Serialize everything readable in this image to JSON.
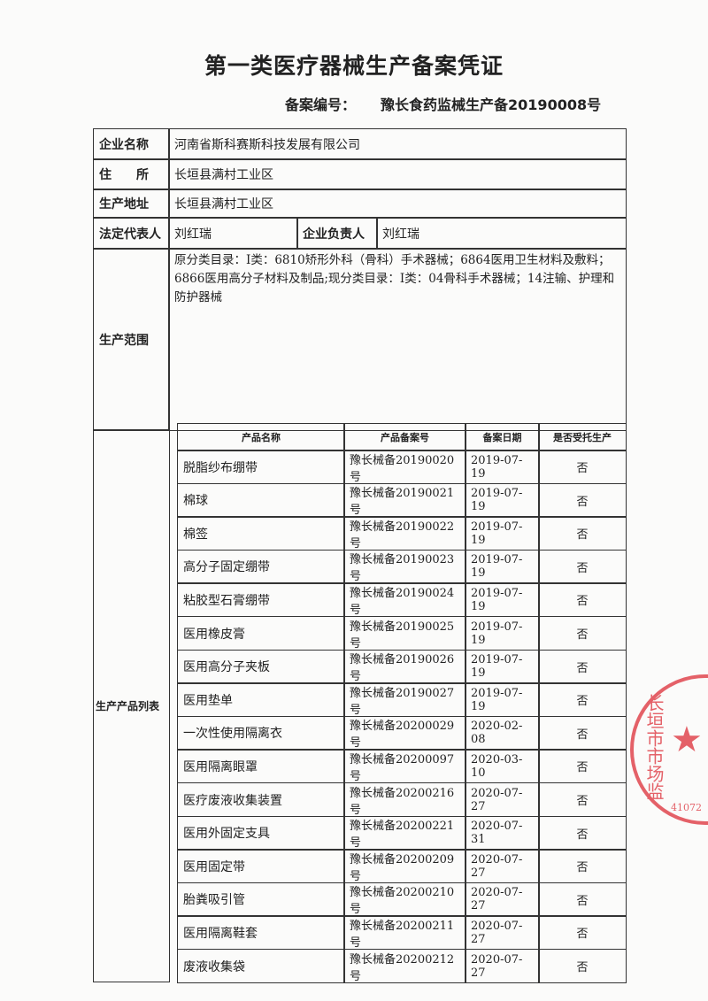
{
  "title": "第一类医疗器械生产备案凭证",
  "record": {
    "label": "备案编号：",
    "value": "豫长食药监械生产备",
    "number": "20190008号"
  },
  "fields": {
    "company_label": "企业名称",
    "company": "河南省斯科赛斯科技发展有限公司",
    "residence_label": "住　　所",
    "residence": "长垣县满村工业区",
    "site_label": "生产地址",
    "site": "长垣县满村工业区",
    "legal_label": "法定代表人",
    "legal": "刘红瑞",
    "head_label": "企业负责人",
    "head": "刘红瑞",
    "scope_label": "生产范围",
    "scope": "原分类目录：Ⅰ类：6810矫形外科（骨科）手术器械；6864医用卫生材料及敷料；6866医用高分子材料及制品;现分类目录：Ⅰ类：04骨科手术器械；14注输、护理和防护器械",
    "products_label": "生产产品列表"
  },
  "products": {
    "headers": [
      "产品名称",
      "产品备案号",
      "备案日期",
      "是否受托生产"
    ],
    "rows": [
      [
        "脱脂纱布绷带",
        "豫长械备20190020号",
        "2019-07-19",
        "否"
      ],
      [
        "棉球",
        "豫长械备20190021号",
        "2019-07-19",
        "否"
      ],
      [
        "棉签",
        "豫长械备20190022号",
        "2019-07-19",
        "否"
      ],
      [
        "高分子固定绷带",
        "豫长械备20190023号",
        "2019-07-19",
        "否"
      ],
      [
        "粘胶型石膏绷带",
        "豫长械备20190024号",
        "2019-07-19",
        "否"
      ],
      [
        "医用橡皮膏",
        "豫长械备20190025号",
        "2019-07-19",
        "否"
      ],
      [
        "医用高分子夹板",
        "豫长械备20190026号",
        "2019-07-19",
        "否"
      ],
      [
        "医用垫单",
        "豫长械备20190027号",
        "2019-07-19",
        "否"
      ],
      [
        "一次性使用隔离衣",
        "豫长械备20200029号",
        "2020-02-08",
        "否"
      ],
      [
        "医用隔离眼罩",
        "豫长械备20200097号",
        "2020-03-10",
        "否"
      ],
      [
        "医疗废液收集装置",
        "豫长械备20200216号",
        "2020-07-27",
        "否"
      ],
      [
        "医用外固定支具",
        "豫长械备20200221号",
        "2020-07-31",
        "否"
      ],
      [
        "医用固定带",
        "豫长械备20200209号",
        "2020-07-27",
        "否"
      ],
      [
        "胎粪吸引管",
        "豫长械备20200210号",
        "2020-07-27",
        "否"
      ],
      [
        "医用隔离鞋套",
        "豫长械备20200211号",
        "2020-07-27",
        "否"
      ],
      [
        "废液收集袋",
        "豫长械备20200212号",
        "2020-07-27",
        "否"
      ]
    ]
  },
  "stamp": {
    "text": "长垣市市场监",
    "code": "41072",
    "color": "#e0474f"
  }
}
